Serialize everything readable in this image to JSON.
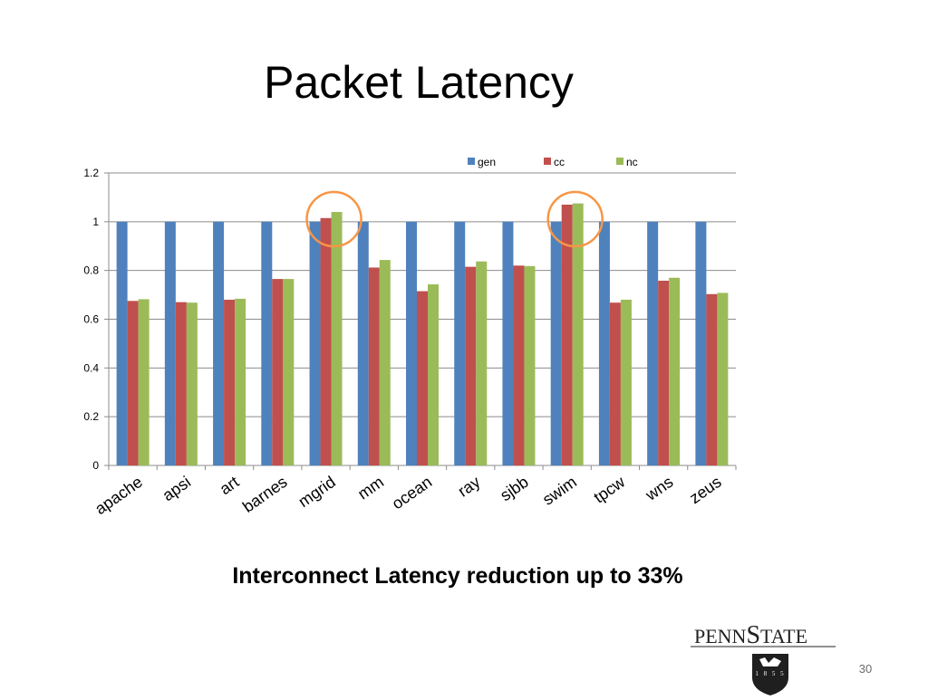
{
  "slide": {
    "title": "Packet Latency",
    "subtitle": "Interconnect Latency reduction up to  33%",
    "page_number": "30"
  },
  "logo": {
    "text": "PENNSTATE",
    "year": "1855"
  },
  "chart_data": {
    "type": "bar",
    "title": "",
    "xlabel": "",
    "ylabel": "",
    "ylim": [
      0,
      1.2
    ],
    "yticks": [
      "0",
      "0.2",
      "0.4",
      "0.6",
      "0.8",
      "1",
      "1.2"
    ],
    "grid": true,
    "legend_position": "top",
    "categories": [
      "apache",
      "apsi",
      "art",
      "barnes",
      "mgrid",
      "mm",
      "ocean",
      "ray",
      "sjbb",
      "swim",
      "tpcw",
      "wns",
      "zeus"
    ],
    "series": [
      {
        "name": "gen",
        "color": "#4f81bd",
        "values": [
          1,
          1,
          1,
          1,
          1,
          1,
          1,
          1,
          1,
          1,
          1,
          1,
          1
        ]
      },
      {
        "name": "cc",
        "color": "#c0504d",
        "values": [
          0.675,
          0.67,
          0.68,
          0.765,
          1.015,
          0.812,
          0.715,
          0.815,
          0.82,
          1.07,
          0.668,
          0.758,
          0.703
        ]
      },
      {
        "name": "nc",
        "color": "#9bbb59",
        "values": [
          0.682,
          0.668,
          0.684,
          0.765,
          1.04,
          0.843,
          0.743,
          0.837,
          0.818,
          1.075,
          0.68,
          0.77,
          0.708
        ]
      }
    ],
    "highlighted_categories": [
      "mgrid",
      "swim"
    ],
    "highlight_color": "#f79646"
  }
}
